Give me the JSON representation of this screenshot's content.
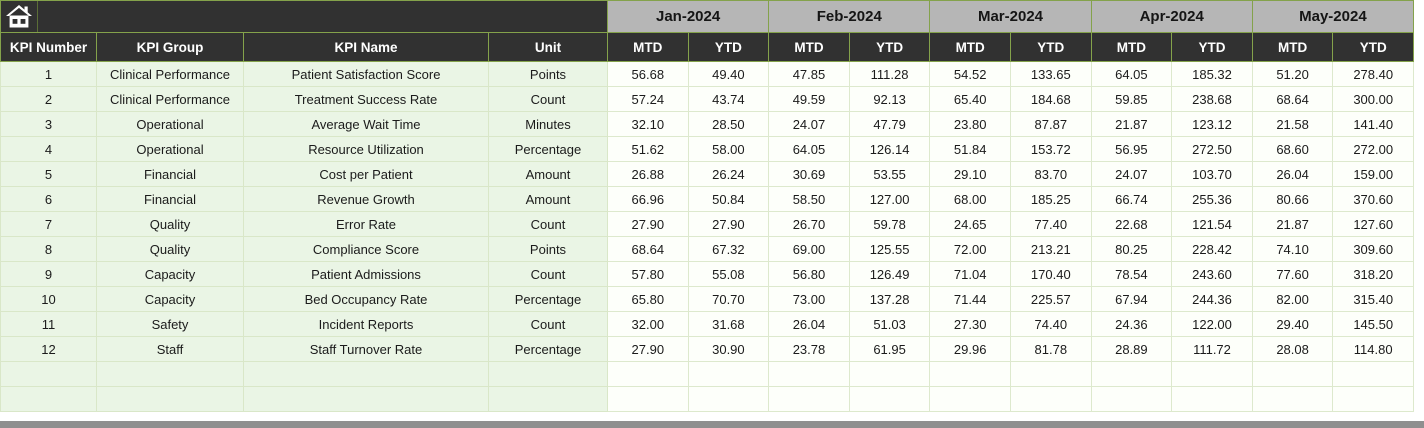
{
  "colors": {
    "header_dark": "#313131",
    "month_gray": "#b6b6b6",
    "border_green": "#84a24b",
    "row_light_green": "#eaf5e5",
    "grid_light": "#d9e7c8",
    "scrollbar_gray": "#8f8f8f",
    "header_text": "#ffffff"
  },
  "table": {
    "columns": [
      "KPI Number",
      "KPI Group",
      "KPI Name",
      "Unit"
    ],
    "months": [
      "Jan-2024",
      "Feb-2024",
      "Mar-2024",
      "Apr-2024",
      "May-2024"
    ],
    "sub_headers": [
      "MTD",
      "YTD"
    ],
    "empty_rows": 2,
    "rows": [
      {
        "kpi_number": "1",
        "kpi_group": "Clinical Performance",
        "kpi_name": "Patient Satisfaction Score",
        "unit": "Points",
        "values": [
          "56.68",
          "49.40",
          "47.85",
          "111.28",
          "54.52",
          "133.65",
          "64.05",
          "185.32",
          "51.20",
          "278.40"
        ]
      },
      {
        "kpi_number": "2",
        "kpi_group": "Clinical Performance",
        "kpi_name": "Treatment Success Rate",
        "unit": "Count",
        "values": [
          "57.24",
          "43.74",
          "49.59",
          "92.13",
          "65.40",
          "184.68",
          "59.85",
          "238.68",
          "68.64",
          "300.00"
        ]
      },
      {
        "kpi_number": "3",
        "kpi_group": "Operational",
        "kpi_name": "Average Wait Time",
        "unit": "Minutes",
        "values": [
          "32.10",
          "28.50",
          "24.07",
          "47.79",
          "23.80",
          "87.87",
          "21.87",
          "123.12",
          "21.58",
          "141.40"
        ]
      },
      {
        "kpi_number": "4",
        "kpi_group": "Operational",
        "kpi_name": "Resource Utilization",
        "unit": "Percentage",
        "values": [
          "51.62",
          "58.00",
          "64.05",
          "126.14",
          "51.84",
          "153.72",
          "56.95",
          "272.50",
          "68.60",
          "272.00"
        ]
      },
      {
        "kpi_number": "5",
        "kpi_group": "Financial",
        "kpi_name": "Cost per Patient",
        "unit": "Amount",
        "values": [
          "26.88",
          "26.24",
          "30.69",
          "53.55",
          "29.10",
          "83.70",
          "24.07",
          "103.70",
          "26.04",
          "159.00"
        ]
      },
      {
        "kpi_number": "6",
        "kpi_group": "Financial",
        "kpi_name": "Revenue Growth",
        "unit": "Amount",
        "values": [
          "66.96",
          "50.84",
          "58.50",
          "127.00",
          "68.00",
          "185.25",
          "66.74",
          "255.36",
          "80.66",
          "370.60"
        ]
      },
      {
        "kpi_number": "7",
        "kpi_group": "Quality",
        "kpi_name": "Error Rate",
        "unit": "Count",
        "values": [
          "27.90",
          "27.90",
          "26.70",
          "59.78",
          "24.65",
          "77.40",
          "22.68",
          "121.54",
          "21.87",
          "127.60"
        ]
      },
      {
        "kpi_number": "8",
        "kpi_group": "Quality",
        "kpi_name": "Compliance Score",
        "unit": "Points",
        "values": [
          "68.64",
          "67.32",
          "69.00",
          "125.55",
          "72.00",
          "213.21",
          "80.25",
          "228.42",
          "74.10",
          "309.60"
        ]
      },
      {
        "kpi_number": "9",
        "kpi_group": "Capacity",
        "kpi_name": "Patient Admissions",
        "unit": "Count",
        "values": [
          "57.80",
          "55.08",
          "56.80",
          "126.49",
          "71.04",
          "170.40",
          "78.54",
          "243.60",
          "77.60",
          "318.20"
        ]
      },
      {
        "kpi_number": "10",
        "kpi_group": "Capacity",
        "kpi_name": "Bed Occupancy Rate",
        "unit": "Percentage",
        "values": [
          "65.80",
          "70.70",
          "73.00",
          "137.28",
          "71.44",
          "225.57",
          "67.94",
          "244.36",
          "82.00",
          "315.40"
        ]
      },
      {
        "kpi_number": "11",
        "kpi_group": "Safety",
        "kpi_name": "Incident Reports",
        "unit": "Count",
        "values": [
          "32.00",
          "31.68",
          "26.04",
          "51.03",
          "27.30",
          "74.40",
          "24.36",
          "122.00",
          "29.40",
          "145.50"
        ]
      },
      {
        "kpi_number": "12",
        "kpi_group": "Staff",
        "kpi_name": "Staff Turnover Rate",
        "unit": "Percentage",
        "values": [
          "27.90",
          "30.90",
          "23.78",
          "61.95",
          "29.96",
          "81.78",
          "28.89",
          "111.72",
          "28.08",
          "114.80"
        ]
      }
    ]
  }
}
